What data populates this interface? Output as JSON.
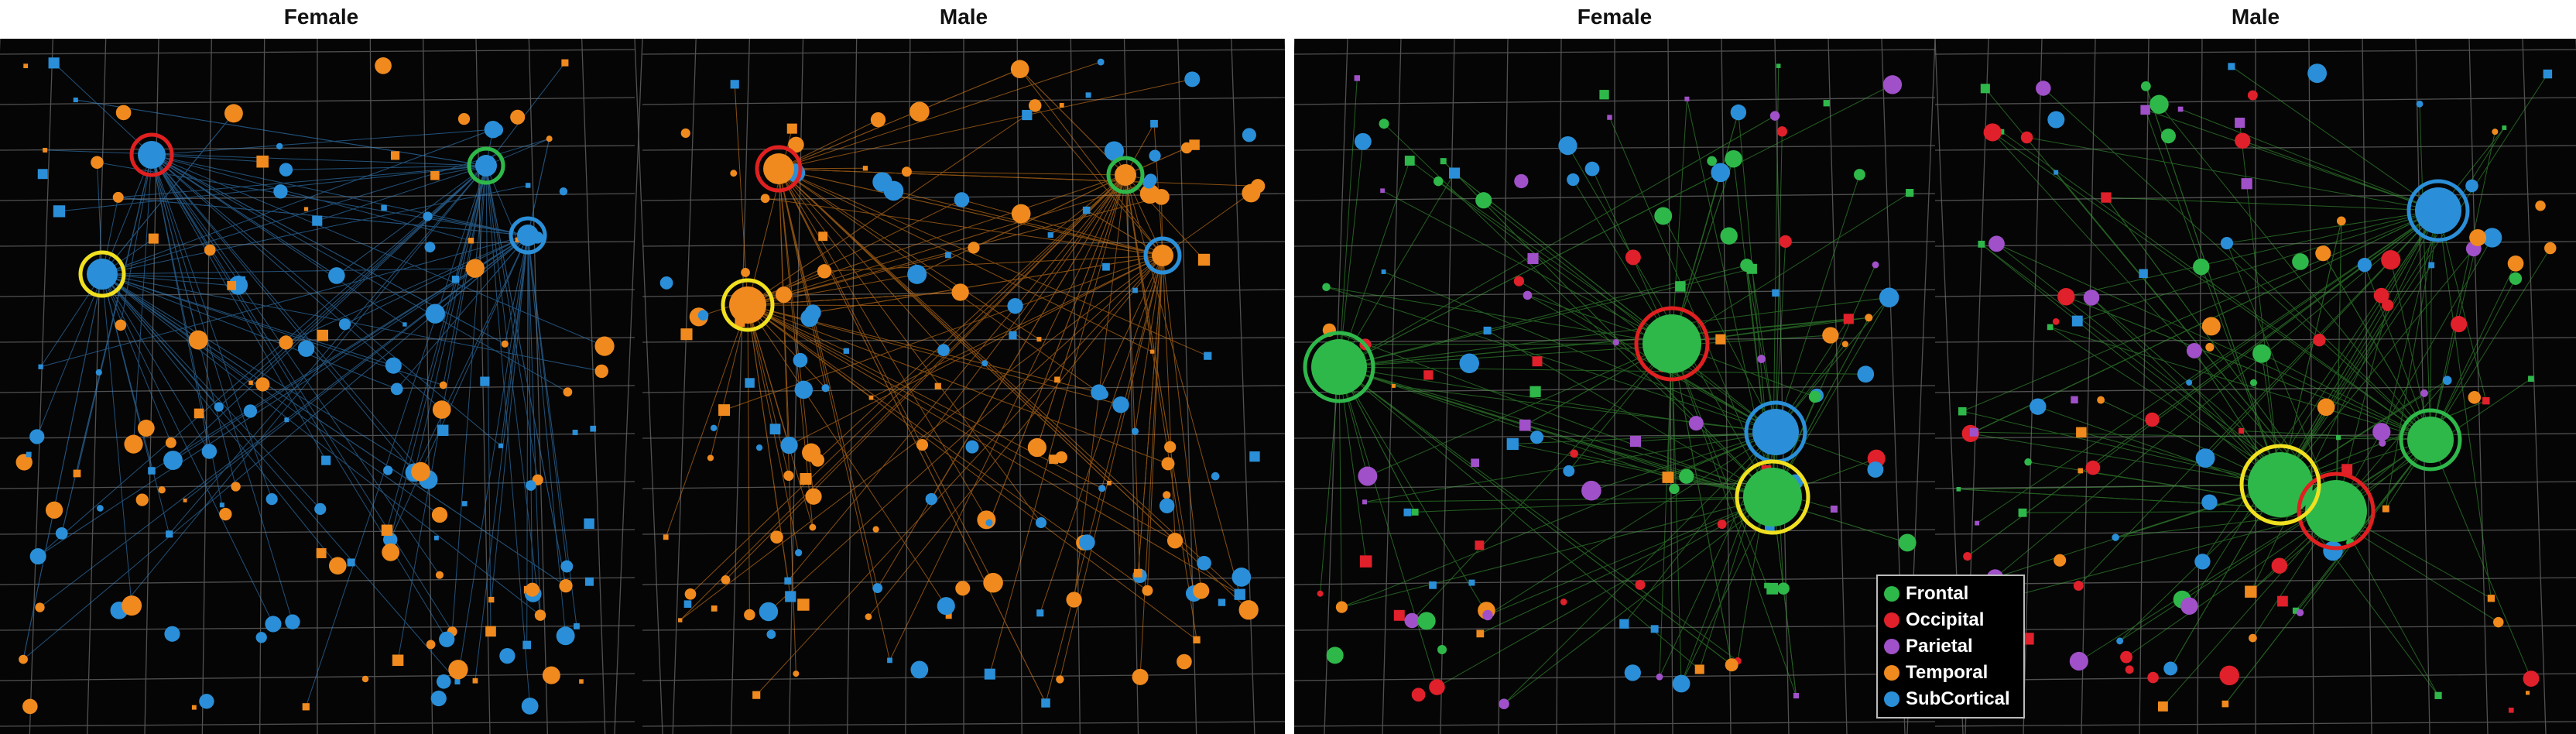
{
  "titles": [
    "Female",
    "Male",
    "Female",
    "Male"
  ],
  "legend": [
    {
      "label": "Frontal",
      "color": "#2fb84a"
    },
    {
      "label": "Occipital",
      "color": "#e0202a"
    },
    {
      "label": "Parietal",
      "color": "#a050c8"
    },
    {
      "label": "Temporal",
      "color": "#f08a1e"
    },
    {
      "label": "SubCortical",
      "color": "#2a8fd8"
    }
  ],
  "highlight_ring_colors": [
    "#e02020",
    "#2fb84a",
    "#2a8fd8",
    "#f0e020"
  ],
  "colors": {
    "background": "#050505",
    "grid": "#6a6a6a",
    "left_female_edges": "#3a8fd8",
    "left_male_edges": "#f08a1e",
    "right_edges": "#3faa3a"
  }
}
